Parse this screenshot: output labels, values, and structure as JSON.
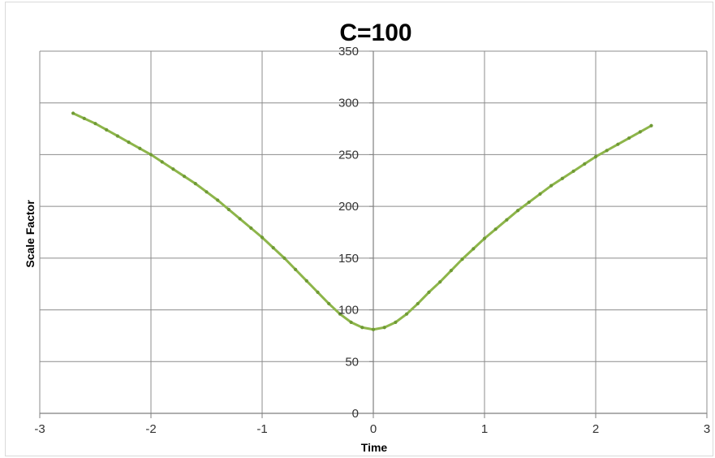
{
  "chart_data": {
    "type": "line",
    "title": "C=100",
    "xlabel": "Time",
    "ylabel": "Scale Factor",
    "xlim": [
      -3,
      3
    ],
    "ylim": [
      0,
      350
    ],
    "xticks": [
      -3,
      -2,
      -1,
      0,
      1,
      2,
      3
    ],
    "yticks": [
      0,
      50,
      100,
      150,
      200,
      250,
      300,
      350
    ],
    "grid": true,
    "legend": "none",
    "series": [
      {
        "color": "#8db54a",
        "x": [
          -2.7,
          -2.6,
          -2.5,
          -2.4,
          -2.3,
          -2.2,
          -2.1,
          -2.0,
          -1.9,
          -1.8,
          -1.7,
          -1.6,
          -1.5,
          -1.4,
          -1.3,
          -1.2,
          -1.1,
          -1.0,
          -0.9,
          -0.8,
          -0.7,
          -0.6,
          -0.5,
          -0.4,
          -0.3,
          -0.2,
          -0.1,
          0.0,
          0.1,
          0.2,
          0.3,
          0.4,
          0.5,
          0.6,
          0.7,
          0.8,
          0.9,
          1.0,
          1.1,
          1.2,
          1.3,
          1.4,
          1.5,
          1.6,
          1.7,
          1.8,
          1.9,
          2.0,
          2.1,
          2.2,
          2.3,
          2.4,
          2.5
        ],
        "y": [
          290,
          285,
          280,
          274,
          268,
          262,
          256,
          250,
          243,
          236,
          229,
          222,
          214,
          206,
          197,
          188,
          179,
          170,
          160,
          150,
          139,
          128,
          117,
          106,
          96,
          88,
          83,
          81,
          83,
          88,
          96,
          106,
          117,
          127,
          138,
          149,
          159,
          169,
          178,
          187,
          196,
          204,
          212,
          220,
          227,
          234,
          241,
          248,
          254,
          260,
          266,
          272,
          278
        ]
      }
    ]
  }
}
